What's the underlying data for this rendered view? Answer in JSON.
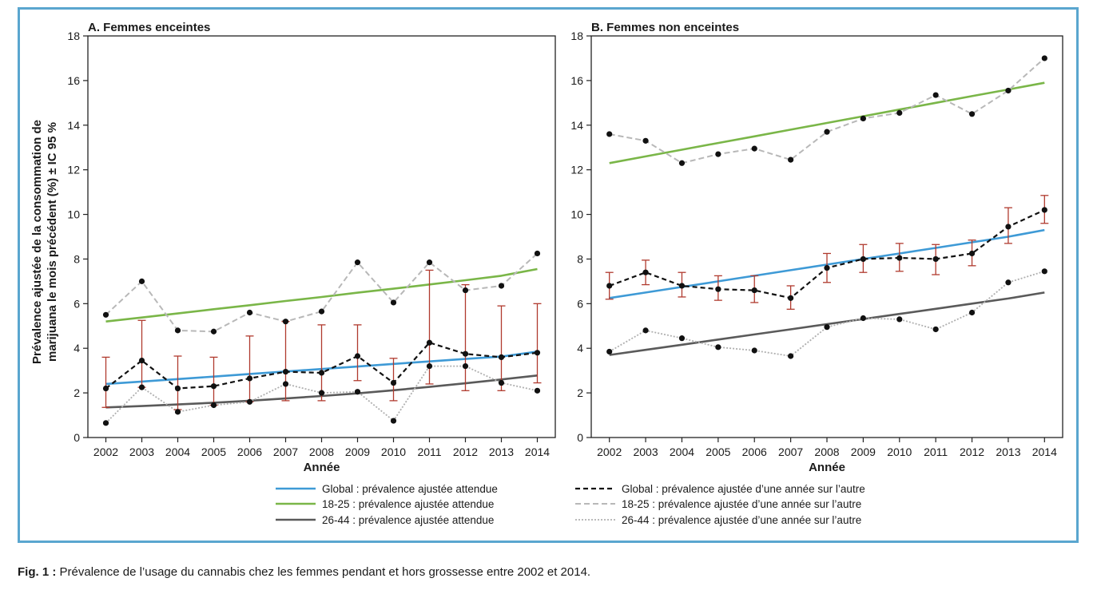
{
  "caption": {
    "label": "Fig. 1 :",
    "text": " Prévalence de l’usage du cannabis chez les femmes pendant et hors grossesse entre 2002 et 2014."
  },
  "ylabel_lines": [
    "Prévalence ajustée de la consommation de",
    "marijuana le mois précédent (%) ± IC 95 %"
  ],
  "legend": [
    {
      "id": "g_fit",
      "label": "Global : prévalence ajustée attendue"
    },
    {
      "id": "y_fit",
      "label": "18-25 : prévalence ajustée attendue"
    },
    {
      "id": "o_fit",
      "label": "26-44 : prévalence ajustée attendue"
    },
    {
      "id": "g_obs",
      "label": "Global : prévalence ajustée d’une année sur l’autre"
    },
    {
      "id": "y_obs",
      "label": "18-25 : prévalence ajustée d’une année sur l’autre"
    },
    {
      "id": "o_obs",
      "label": "26-44 : prévalence ajustée d’une année sur l’autre"
    }
  ],
  "colors": {
    "global_fit": "#3e9ad6",
    "young_fit": "#7ab648",
    "older_fit": "#5a5a5a",
    "global_obs": "#111111",
    "young_obs": "#b8b8b8",
    "older_obs": "#b0b0b0",
    "error_bar": "#b03a2e",
    "frame": "#5aa6cf"
  },
  "chart_data": [
    {
      "type": "line",
      "title": "A. Femmes enceintes",
      "xlabel": "Année",
      "ylabel": "Prévalence ajustée de la consommation de marijuana le mois précédent (%) ± IC 95 %",
      "x": [
        2002,
        2003,
        2004,
        2005,
        2006,
        2007,
        2008,
        2009,
        2010,
        2011,
        2012,
        2013,
        2014
      ],
      "ylim": [
        0,
        18
      ],
      "yticks": [
        0,
        2,
        4,
        6,
        8,
        10,
        12,
        14,
        16,
        18
      ],
      "series": [
        {
          "key": "global_obs",
          "name": "Global : prévalence ajustée d’une année sur l’autre",
          "values": [
            2.2,
            3.45,
            2.2,
            2.3,
            2.65,
            2.95,
            2.9,
            3.65,
            2.45,
            4.25,
            3.75,
            3.6,
            3.8
          ],
          "ci_low": [
            1.35,
            2.25,
            1.25,
            1.45,
            1.6,
            1.65,
            1.65,
            2.55,
            1.65,
            2.4,
            2.1,
            2.1,
            2.45
          ],
          "ci_high": [
            3.6,
            5.25,
            3.65,
            3.6,
            4.55,
            5.2,
            5.05,
            5.05,
            3.55,
            7.5,
            6.85,
            5.9,
            6.0
          ]
        },
        {
          "key": "young_obs",
          "name": "18-25 : prévalence ajustée d’une année sur l’autre",
          "values": [
            5.5,
            7.0,
            4.8,
            4.75,
            5.6,
            5.2,
            5.65,
            7.85,
            6.05,
            7.85,
            6.6,
            6.8,
            8.25
          ]
        },
        {
          "key": "older_obs",
          "name": "26-44 : prévalence ajustée d’une année sur l’autre",
          "values": [
            0.65,
            2.25,
            1.15,
            1.45,
            1.6,
            2.4,
            2.0,
            2.05,
            0.75,
            3.2,
            3.2,
            2.45,
            2.1
          ]
        },
        {
          "key": "global_fit",
          "name": "Global : prévalence ajustée attendue",
          "values": [
            2.4,
            2.51,
            2.62,
            2.73,
            2.85,
            2.96,
            3.07,
            3.18,
            3.3,
            3.41,
            3.52,
            3.63,
            3.85
          ]
        },
        {
          "key": "young_fit",
          "name": "18-25 : prévalence ajustée attendue",
          "values": [
            5.2,
            5.38,
            5.56,
            5.75,
            5.93,
            6.12,
            6.3,
            6.49,
            6.67,
            6.86,
            7.05,
            7.25,
            7.55
          ]
        },
        {
          "key": "older_fit",
          "name": "26-44 : prévalence ajustée attendue",
          "values": [
            1.35,
            1.41,
            1.48,
            1.56,
            1.65,
            1.75,
            1.86,
            1.98,
            2.12,
            2.27,
            2.43,
            2.6,
            2.78
          ]
        }
      ]
    },
    {
      "type": "line",
      "title": "B. Femmes non enceintes",
      "xlabel": "Année",
      "x": [
        2002,
        2003,
        2004,
        2005,
        2006,
        2007,
        2008,
        2009,
        2010,
        2011,
        2012,
        2013,
        2014
      ],
      "ylim": [
        0,
        18
      ],
      "yticks": [
        0,
        2,
        4,
        6,
        8,
        10,
        12,
        14,
        16,
        18
      ],
      "series": [
        {
          "key": "global_obs",
          "name": "Global : prévalence ajustée d’une année sur l’autre",
          "values": [
            6.8,
            7.4,
            6.8,
            6.65,
            6.6,
            6.25,
            7.6,
            8.0,
            8.05,
            8.0,
            8.25,
            9.45,
            10.2
          ],
          "ci_low": [
            6.2,
            6.85,
            6.3,
            6.15,
            6.05,
            5.75,
            6.95,
            7.4,
            7.45,
            7.3,
            7.7,
            8.7,
            9.6
          ],
          "ci_high": [
            7.4,
            7.95,
            7.4,
            7.25,
            7.25,
            6.8,
            8.25,
            8.65,
            8.7,
            8.65,
            8.85,
            10.3,
            10.85
          ]
        },
        {
          "key": "young_obs",
          "name": "18-25 : prévalence ajustée d’une année sur l’autre",
          "values": [
            13.6,
            13.3,
            12.3,
            12.7,
            12.95,
            12.45,
            13.7,
            14.3,
            14.55,
            15.35,
            14.5,
            15.55,
            17.0
          ]
        },
        {
          "key": "older_obs",
          "name": "26-44 : prévalence ajustée d’une année sur l’autre",
          "values": [
            3.85,
            4.8,
            4.45,
            4.05,
            3.9,
            3.65,
            4.95,
            5.35,
            5.3,
            4.85,
            5.6,
            6.95,
            7.45
          ]
        },
        {
          "key": "global_fit",
          "name": "Global : prévalence ajustée attendue",
          "values": [
            6.25,
            6.5,
            6.75,
            7.0,
            7.25,
            7.5,
            7.75,
            8.0,
            8.25,
            8.5,
            8.75,
            9.0,
            9.3
          ]
        },
        {
          "key": "young_fit",
          "name": "18-25 : prévalence ajustée attendue",
          "values": [
            12.3,
            12.6,
            12.9,
            13.2,
            13.5,
            13.8,
            14.1,
            14.4,
            14.7,
            15.0,
            15.3,
            15.6,
            15.9
          ]
        },
        {
          "key": "older_fit",
          "name": "26-44 : prévalence ajustée attendue",
          "values": [
            3.7,
            3.93,
            4.16,
            4.39,
            4.62,
            4.85,
            5.08,
            5.31,
            5.54,
            5.77,
            6.0,
            6.23,
            6.5
          ]
        }
      ]
    }
  ]
}
